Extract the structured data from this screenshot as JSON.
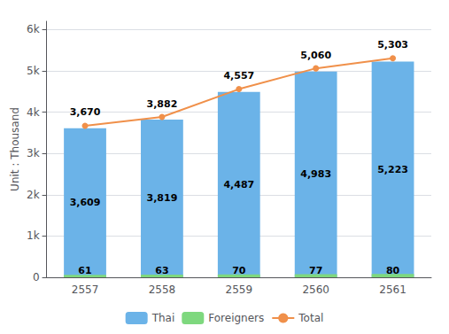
{
  "chart_data": {
    "type": "bar",
    "categories": [
      "2557",
      "2558",
      "2559",
      "2560",
      "2561"
    ],
    "ylabel": "Unit : Thousand",
    "ylim": [
      0,
      6200
    ],
    "yticks": [
      0,
      {
        "value": 1000,
        "label": "1k"
      },
      {
        "value": 2000,
        "label": "2k"
      },
      {
        "value": 3000,
        "label": "3k"
      },
      {
        "value": 4000,
        "label": "4k"
      },
      {
        "value": 5000,
        "label": "5k"
      },
      {
        "value": 6000,
        "label": "6k"
      }
    ],
    "grid": true,
    "legend": "bottom",
    "data_labels": true,
    "series": [
      {
        "name": "Thai",
        "type": "bar",
        "color": "#6bb3e8",
        "values": [
          3609,
          3819,
          4487,
          4983,
          5223
        ],
        "value_labels": [
          "3,609",
          "3,819",
          "4,487",
          "4,983",
          "5,223"
        ]
      },
      {
        "name": "Foreigners",
        "type": "bar",
        "color": "#7ed87e",
        "values": [
          61,
          63,
          70,
          77,
          80
        ]
      },
      {
        "name": "Total",
        "type": "line",
        "color": "#f0904a",
        "marker": "circle",
        "values": [
          3670,
          3882,
          4557,
          5060,
          5303
        ],
        "value_labels": [
          "3,670",
          "3,882",
          "4,557",
          "5,060",
          "5,303"
        ]
      }
    ]
  }
}
